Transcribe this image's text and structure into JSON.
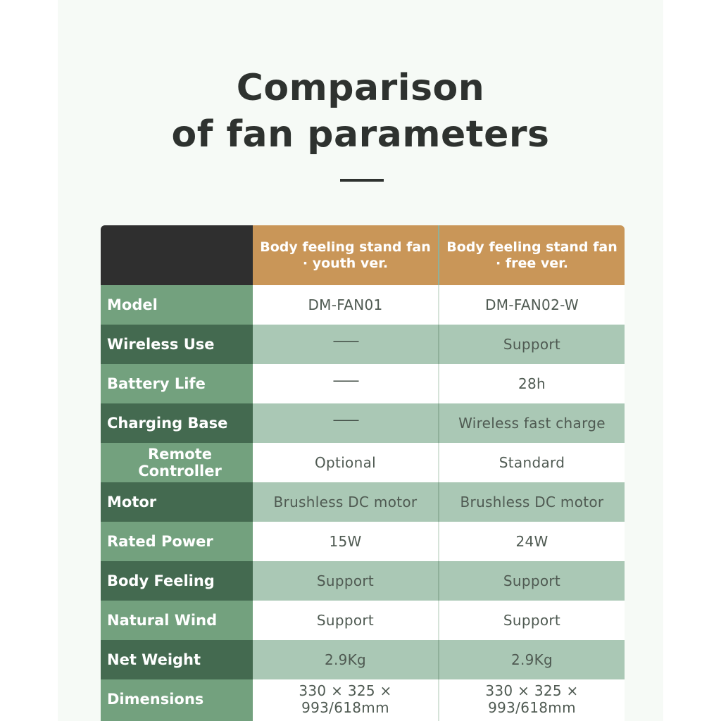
{
  "title": {
    "line1": "Comparison",
    "line2": "of fan parameters"
  },
  "table": {
    "columns": [
      {
        "line1": "Body feeling stand fan",
        "line2": "· youth ver."
      },
      {
        "line1": "Body feeling stand fan",
        "line2": "· free ver."
      }
    ],
    "rows": [
      {
        "label": "Model",
        "youth": "DM-FAN01",
        "free": "DM-FAN02-W"
      },
      {
        "label": "Wireless Use",
        "youth": "——",
        "free": "Support"
      },
      {
        "label": "Battery Life",
        "youth": "——",
        "free": "28h"
      },
      {
        "label": "Charging Base",
        "youth": "——",
        "free": "Wireless fast charge"
      },
      {
        "label": "Remote Controller",
        "youth": "Optional",
        "free": "Standard"
      },
      {
        "label": "Motor",
        "youth": "Brushless DC motor",
        "free": "Brushless DC motor"
      },
      {
        "label": "Rated Power",
        "youth": "15W",
        "free": "24W"
      },
      {
        "label": "Body Feeling",
        "youth": "Support",
        "free": "Support"
      },
      {
        "label": "Natural Wind",
        "youth": "Support",
        "free": "Support"
      },
      {
        "label": "Net Weight",
        "youth": "2.9Kg",
        "free": "2.9Kg"
      },
      {
        "label": "Dimensions",
        "youth": "330 × 325 × 993/618mm",
        "free": "330 × 325 × 993/618mm"
      }
    ]
  },
  "colors": {
    "header_accent": "#c99658",
    "label_light": "#73a17e",
    "label_dark": "#446a50",
    "value_dark": "#aac8b5"
  }
}
